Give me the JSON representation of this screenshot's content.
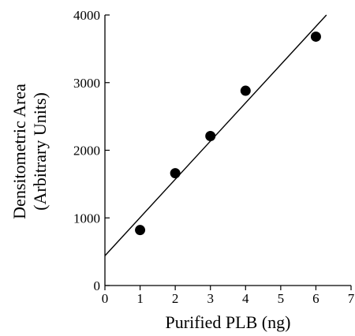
{
  "chart_data": {
    "type": "scatter",
    "xlabel": "Purified PLB (ng)",
    "ylabel_lines": [
      "Densitometric Area",
      "(Arbitrary Units)"
    ],
    "xlim": [
      0,
      7
    ],
    "ylim": [
      0,
      4000
    ],
    "x_ticks": [
      0,
      1,
      2,
      3,
      4,
      5,
      6,
      7
    ],
    "y_ticks": [
      0,
      1000,
      2000,
      3000,
      4000
    ],
    "points": [
      {
        "x": 1,
        "y": 820
      },
      {
        "x": 2,
        "y": 1660
      },
      {
        "x": 3,
        "y": 2210
      },
      {
        "x": 4,
        "y": 2880
      },
      {
        "x": 6,
        "y": 3680
      }
    ],
    "fit_line": {
      "x_start": 0,
      "y_start": 440,
      "x_end": 6.3,
      "y_end": 4000
    },
    "grid": false,
    "colors": {
      "marker": "#000000",
      "line": "#000000",
      "axis": "#000000"
    }
  }
}
